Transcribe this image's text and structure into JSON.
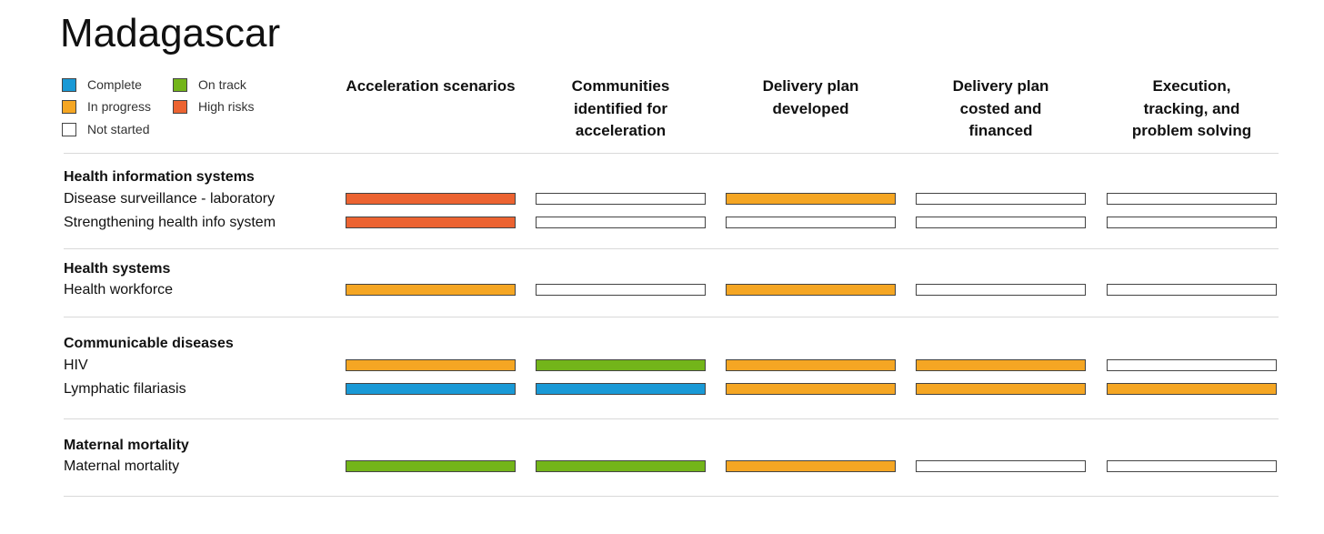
{
  "title": "Madagascar",
  "colors": {
    "complete": "#1999d6",
    "on_track": "#73b51a",
    "in_progress": "#f5a623",
    "high_risks": "#ec6331",
    "not_started": "#ffffff"
  },
  "legend": [
    {
      "key": "complete",
      "label": "Complete"
    },
    {
      "key": "on_track",
      "label": "On track"
    },
    {
      "key": "in_progress",
      "label": "In progress"
    },
    {
      "key": "high_risks",
      "label": "High risks"
    },
    {
      "key": "not_started",
      "label": "Not started"
    }
  ],
  "chart_data": {
    "type": "table",
    "columns": [
      "Acceleration scenarios",
      "Communities identified for acceleration",
      "Delivery plan developed",
      "Delivery plan costed and financed",
      "Execution, tracking, and problem solving"
    ],
    "column_header_lines": [
      [
        "Acceleration scenarios"
      ],
      [
        "Communities",
        "identified for",
        "acceleration"
      ],
      [
        "Delivery plan",
        "developed"
      ],
      [
        "Delivery plan",
        "costed and",
        "financed"
      ],
      [
        "Execution,",
        "tracking, and",
        "problem solving"
      ]
    ],
    "sections": [
      {
        "name": "Health information systems",
        "rows": [
          {
            "label": "Disease surveillance - laboratory",
            "status": [
              "high_risks",
              "not_started",
              "in_progress",
              "not_started",
              "not_started"
            ]
          },
          {
            "label": "Strengthening health info system",
            "status": [
              "high_risks",
              "not_started",
              "not_started",
              "not_started",
              "not_started"
            ]
          }
        ]
      },
      {
        "name": "Health systems",
        "rows": [
          {
            "label": "Health workforce",
            "status": [
              "in_progress",
              "not_started",
              "in_progress",
              "not_started",
              "not_started"
            ]
          }
        ]
      },
      {
        "name": "Communicable diseases",
        "rows": [
          {
            "label": "HIV",
            "status": [
              "in_progress",
              "on_track",
              "in_progress",
              "in_progress",
              "not_started"
            ]
          },
          {
            "label": "Lymphatic filariasis",
            "status": [
              "complete",
              "complete",
              "in_progress",
              "in_progress",
              "in_progress"
            ]
          }
        ]
      },
      {
        "name": "Maternal mortality",
        "rows": [
          {
            "label": "Maternal mortality",
            "status": [
              "on_track",
              "on_track",
              "in_progress",
              "not_started",
              "not_started"
            ]
          }
        ]
      }
    ]
  }
}
